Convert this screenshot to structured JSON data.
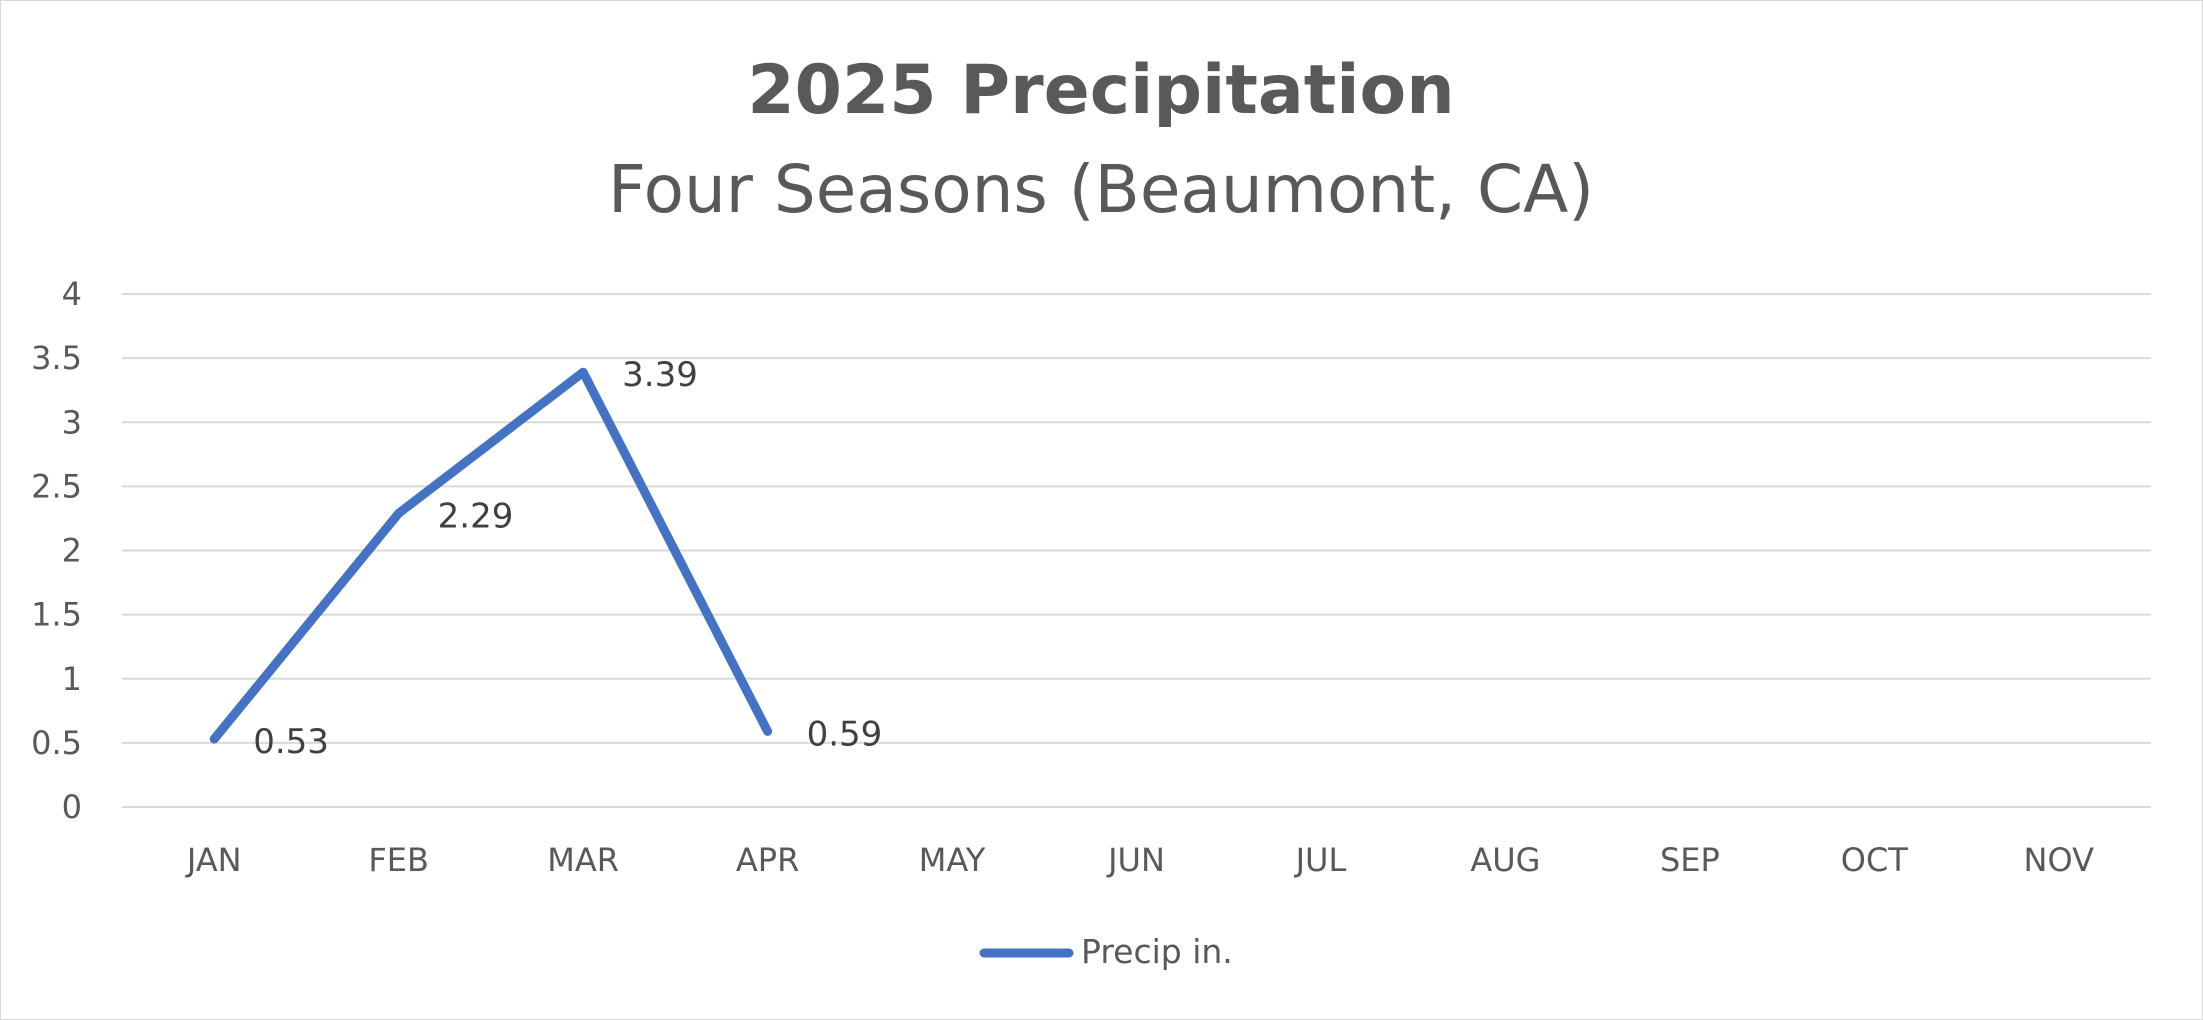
{
  "chart_data": {
    "type": "line",
    "title": "2025 Precipitation",
    "subtitle": "Four Seasons (Beaumont, CA)",
    "categories": [
      "JAN",
      "FEB",
      "MAR",
      "APR",
      "MAY",
      "JUN",
      "JUL",
      "AUG",
      "SEP",
      "OCT",
      "NOV"
    ],
    "series": [
      {
        "name": "Precip in.",
        "color": "#4472C4",
        "values": [
          0.53,
          2.29,
          3.39,
          0.59,
          null,
          null,
          null,
          null,
          null,
          null,
          null
        ],
        "data_labels": [
          "0.53",
          "2.29",
          "3.39",
          "0.59"
        ]
      }
    ],
    "y_ticks": [
      "0",
      "0.5",
      "1",
      "1.5",
      "2",
      "2.5",
      "3",
      "3.5",
      "4"
    ],
    "ylim": [
      0,
      4
    ],
    "grid": true,
    "legend_position": "bottom"
  }
}
